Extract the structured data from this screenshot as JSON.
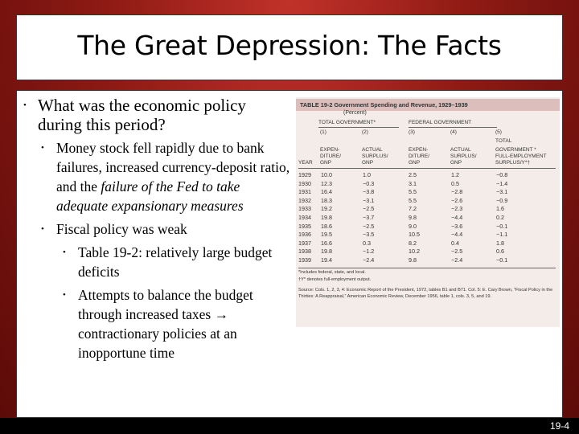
{
  "slide": {
    "title": "The Great Depression: The Facts",
    "page_number": "19-4",
    "bullets": [
      {
        "level": 1,
        "text": "What was the economic policy during this period?"
      },
      {
        "level": 2,
        "text_normal": "Money stock fell rapidly due to bank failures, increased currency-deposit ratio, and the ",
        "text_italic": "failure of the Fed to take adequate expansionary measures"
      },
      {
        "level": 2,
        "text": "Fiscal policy was weak"
      },
      {
        "level": 3,
        "text": "Table 19-2: relatively large budget deficits"
      },
      {
        "level": 3,
        "text": "Attempts to balance the budget through increased taxes → contractionary policies at an inopportune time"
      }
    ]
  },
  "table": {
    "caption": "TABLE 19-2   Government Spending and Revenue, 1929–1939",
    "unit": "(Percent)",
    "group_total": "TOTAL GOVERNMENT*",
    "group_federal": "FEDERAL GOVERNMENT",
    "col_numbers": [
      "(1)",
      "(2)",
      "(3)",
      "(4)",
      "(5)"
    ],
    "col5_top": "TOTAL",
    "col_headers": [
      [
        "EXPEN-",
        "DITURE/",
        "GNP"
      ],
      [
        "ACTUAL",
        "SURPLUS/",
        "GNP"
      ],
      [
        "EXPEN-",
        "DITURE/",
        "GNP"
      ],
      [
        "ACTUAL",
        "SURPLUS/",
        "GNP"
      ],
      [
        "GOVERNMENT *",
        "FULL-EMPLOYMENT",
        "SURPLUS/Y*†"
      ]
    ],
    "year_label": "YEAR",
    "rows": [
      [
        "1929",
        "10.0",
        "1.0",
        "2.5",
        "1.2",
        "−0.8"
      ],
      [
        "1930",
        "12.3",
        "−0.3",
        "3.1",
        "0.5",
        "−1.4"
      ],
      [
        "1931",
        "16.4",
        "−3.8",
        "5.5",
        "−2.8",
        "−3.1"
      ],
      [
        "1932",
        "18.3",
        "−3.1",
        "5.5",
        "−2.6",
        "−0.9"
      ],
      [
        "1933",
        "19.2",
        "−2.5",
        "7.2",
        "−2.3",
        "1.6"
      ],
      [
        "1934",
        "19.8",
        "−3.7",
        "9.8",
        "−4.4",
        "0.2"
      ],
      [
        "1935",
        "18.6",
        "−2.5",
        "9.0",
        "−3.6",
        "−0.1"
      ],
      [
        "1936",
        "19.5",
        "−3.5",
        "10.5",
        "−4.4",
        "−1.1"
      ],
      [
        "1937",
        "16.6",
        "0.3",
        "8.2",
        "0.4",
        "1.8"
      ],
      [
        "1938",
        "19.8",
        "−1.2",
        "10.2",
        "−2.5",
        "0.6"
      ],
      [
        "1939",
        "19.4",
        "−2.4",
        "9.8",
        "−2.4",
        "−0.1"
      ]
    ],
    "footnotes": [
      "*Includes federal, state, and local.",
      "†Y* denotes full-employment output.",
      "Source: Cols. 1, 2, 3, 4: Economic Report of the President, 1972, tables B1 and B71. Col. 5: E. Cary Brown, “Fiscal Policy in the Thirties: A Reappraisal,” American Economic Review, December 1956, table 1, cols. 3, 5, and 19."
    ]
  }
}
